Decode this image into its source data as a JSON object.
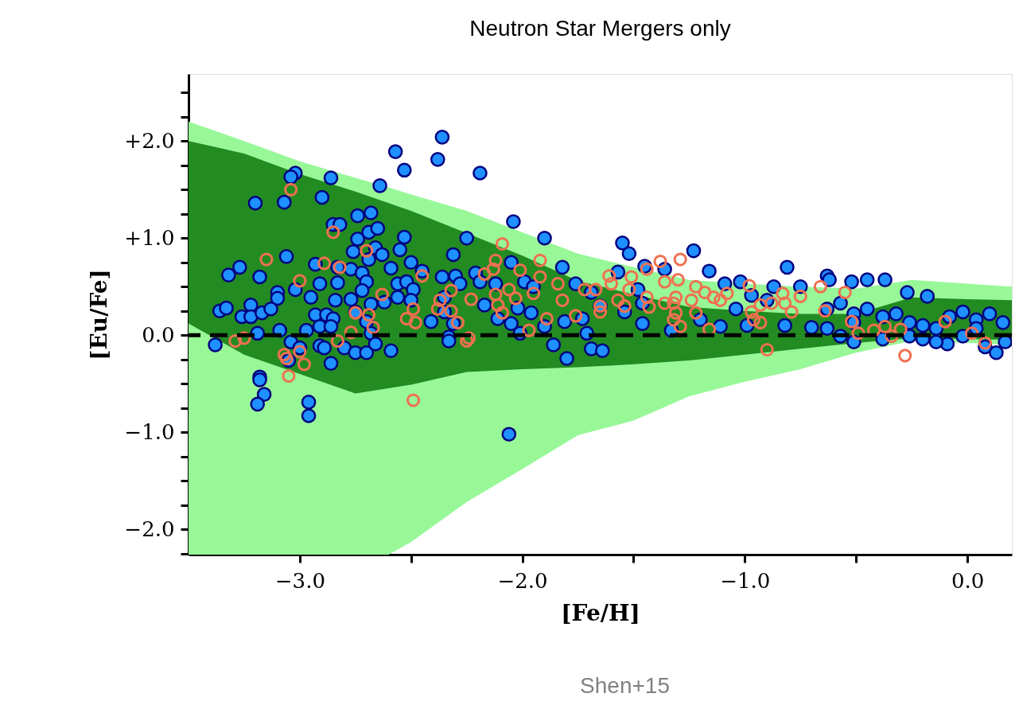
{
  "chart_data": {
    "type": "scatter",
    "title": "Neutron Star Mergers only",
    "xlabel": "[Fe/H]",
    "ylabel": "[Eu/Fe]",
    "annotations": [
      "Shen+15"
    ],
    "xlim": [
      -3.5,
      0.2
    ],
    "ylim": [
      -2.26,
      2.69
    ],
    "xticks": [
      {
        "value": -3,
        "label": "−3.0"
      },
      {
        "value": -2.5,
        "label": null
      },
      {
        "value": -2,
        "label": "−2.0"
      },
      {
        "value": -1.5,
        "label": null
      },
      {
        "value": -1,
        "label": "−1.0"
      },
      {
        "value": -0.5,
        "label": null
      },
      {
        "value": 0,
        "label": "0.0"
      }
    ],
    "yticks": [
      {
        "value": -2.25,
        "label": null
      },
      {
        "value": -2,
        "label": "−2.0"
      },
      {
        "value": -1.75,
        "label": null
      },
      {
        "value": -1.5,
        "label": null
      },
      {
        "value": -1.25,
        "label": null
      },
      {
        "value": -1,
        "label": "−1.0"
      },
      {
        "value": -0.75,
        "label": null
      },
      {
        "value": -0.5,
        "label": null
      },
      {
        "value": -0.25,
        "label": null
      },
      {
        "value": 0,
        "label": "0.0"
      },
      {
        "value": 0.25,
        "label": null
      },
      {
        "value": 0.5,
        "label": null
      },
      {
        "value": 0.75,
        "label": null
      },
      {
        "value": 1,
        "label": "+1.0"
      },
      {
        "value": 1.25,
        "label": null
      },
      {
        "value": 1.5,
        "label": null
      },
      {
        "value": 1.75,
        "label": null
      },
      {
        "value": 2,
        "label": "+2.0"
      },
      {
        "value": 2.25,
        "label": null
      },
      {
        "value": 2.5,
        "label": null
      }
    ],
    "grid": false,
    "ref_lines": [
      {
        "axis": "y",
        "value": 0,
        "color": "#000000",
        "line_style": "dashed"
      }
    ],
    "series": [
      {
        "type": "line",
        "color": "#98f898",
        "x": [
          -3.5,
          -3.25,
          -3.0,
          -2.75,
          -2.6,
          -2.5,
          -2.25,
          -2.0,
          -1.75,
          -1.5,
          -1.25,
          -1.0,
          -0.75,
          -0.5,
          -0.25,
          0.0,
          0.2
        ],
        "values": [
          null,
          null,
          null,
          null,
          null,
          null,
          null,
          null,
          null,
          null,
          null,
          null,
          null,
          null,
          null,
          null,
          null
        ],
        "upper": [
          2.2,
          2.0,
          1.79,
          1.62,
          1.52,
          1.45,
          1.28,
          1.06,
          0.84,
          0.7,
          0.57,
          0.53,
          0.5,
          0.48,
          0.57,
          0.53,
          0.5
        ],
        "lower": [
          -2.26,
          -2.26,
          -2.26,
          -2.26,
          -2.26,
          -2.13,
          -1.72,
          -1.38,
          -1.03,
          -0.88,
          -0.63,
          -0.48,
          -0.35,
          -0.18,
          -0.06,
          -0.08,
          -0.1
        ]
      },
      {
        "type": "line",
        "color": "#228b22",
        "x": [
          -3.5,
          -3.25,
          -3.0,
          -2.75,
          -2.5,
          -2.25,
          -2.0,
          -1.75,
          -1.5,
          -1.25,
          -1.0,
          -0.75,
          -0.5,
          -0.25,
          0.0,
          0.2
        ],
        "values": [
          null,
          null,
          null,
          null,
          null,
          null,
          null,
          null,
          null,
          null,
          null,
          null,
          null,
          null,
          null,
          null
        ],
        "upper": [
          2.0,
          1.87,
          1.66,
          1.48,
          1.28,
          1.05,
          0.82,
          0.56,
          0.42,
          0.29,
          0.25,
          0.22,
          0.22,
          0.39,
          0.37,
          0.36
        ],
        "lower": [
          0.12,
          -0.2,
          -0.4,
          -0.6,
          -0.51,
          -0.38,
          -0.35,
          -0.33,
          -0.3,
          -0.26,
          -0.2,
          -0.14,
          -0.08,
          -0.03,
          -0.04,
          -0.05
        ]
      },
      {
        "marker": "circle",
        "color": "#1e90ff",
        "x": [
          -2.36,
          -2.57,
          -2.38,
          -2.53,
          -2.19,
          -3.02,
          -3.04,
          -2.86,
          -2.64,
          -3.2,
          -3.07,
          -2.9,
          -2.74,
          -2.68,
          -2.85,
          -2.82,
          -2.04,
          -2.69,
          -2.65,
          -2.25,
          -1.9,
          -2.74,
          -2.53,
          -2.31,
          -2.76,
          -2.55,
          -2.66,
          -2.63,
          -3.06,
          -2.69,
          -2.5,
          -1.82,
          -3.27,
          -3.32,
          -3.18,
          -2.93,
          -2.83,
          -2.77,
          -2.72,
          -2.7,
          -2.59,
          -2.91,
          -2.83,
          -3.02,
          -3.1,
          -3.1,
          -2.95,
          -2.72,
          -2.84,
          -2.77,
          -2.56,
          -2.52,
          -2.49,
          -2.45,
          -2.56,
          -2.5,
          -2.36,
          -2.3,
          -2.28,
          -2.21,
          -2.19,
          -2.05,
          -2.12,
          -1.99,
          -1.95,
          -1.76,
          -3.36,
          -3.33,
          -3.22,
          -3.26,
          -3.22,
          -3.17,
          -3.13,
          -2.93,
          -2.88,
          -2.85,
          -2.68,
          -2.62,
          -2.75,
          -2.35,
          -2.35,
          -2.17,
          -2.02,
          -1.96,
          -2.41,
          -2.31,
          -2.11,
          -2.05,
          -1.81,
          -1.73,
          -3.19,
          -3.09,
          -2.97,
          -2.91,
          -2.86,
          -2.7,
          -2.68,
          -2.33,
          -2.01,
          -1.9,
          -3.38,
          -3.04,
          -3.0,
          -2.91,
          -2.89,
          -3.05,
          -3.18,
          -3.18,
          -3.16,
          -3.19,
          -2.96,
          -2.96,
          -2.86,
          -2.8,
          -2.75,
          -2.7,
          -2.66,
          -2.59,
          -2.33,
          -2.06,
          -1.86,
          -1.8,
          -1.69,
          -1.55,
          -1.52,
          -1.23,
          -1.16,
          -1.45,
          -1.36,
          -1.57,
          -0.81,
          -1.02,
          -1.09,
          -0.63,
          -0.62,
          -0.52,
          -0.45,
          -0.37,
          -0.27,
          -0.18,
          -0.87,
          -0.75,
          -0.97,
          -0.9,
          -1.69,
          -1.65,
          -1.48,
          -1.46,
          -1.54,
          -1.46,
          -1.33,
          -1.71,
          -1.64,
          -1.2,
          -1.11,
          -1.04,
          -0.99,
          -0.82,
          -0.7,
          -0.63,
          -0.57,
          -0.51,
          -0.45,
          -0.38,
          -0.32,
          -0.26,
          -0.2,
          -0.14,
          -0.08,
          -0.02,
          0.04,
          0.1,
          0.16,
          -0.57,
          -0.51,
          -0.38,
          -0.26,
          -0.2,
          -0.09,
          -0.02,
          0.08,
          0.13,
          0.17,
          -0.63,
          -0.51,
          -0.14,
          0.04
        ],
        "values": [
          2.04,
          1.89,
          1.81,
          1.7,
          1.67,
          1.67,
          1.63,
          1.62,
          1.54,
          1.36,
          1.37,
          1.42,
          1.23,
          1.26,
          1.14,
          1.14,
          1.17,
          1.06,
          1.1,
          1.0,
          1.0,
          0.99,
          1.01,
          0.83,
          0.86,
          0.88,
          0.9,
          0.83,
          0.81,
          0.78,
          0.75,
          0.7,
          0.7,
          0.62,
          0.6,
          0.73,
          0.7,
          0.68,
          0.64,
          0.55,
          0.69,
          0.53,
          0.54,
          0.47,
          0.44,
          0.38,
          0.39,
          0.46,
          0.36,
          0.37,
          0.53,
          0.55,
          0.47,
          0.66,
          0.39,
          0.36,
          0.6,
          0.61,
          0.53,
          0.64,
          0.55,
          0.75,
          0.53,
          0.55,
          0.5,
          0.53,
          0.25,
          0.28,
          0.31,
          0.19,
          0.19,
          0.23,
          0.27,
          0.21,
          0.21,
          0.17,
          0.32,
          0.34,
          0.24,
          0.39,
          0.24,
          0.31,
          0.28,
          0.23,
          0.14,
          0.12,
          0.17,
          0.12,
          0.14,
          0.17,
          0.02,
          0.05,
          0.05,
          0.09,
          0.09,
          0.14,
          0.02,
          -0.02,
          0.02,
          0.09,
          -0.1,
          -0.07,
          -0.13,
          -0.11,
          -0.13,
          -0.26,
          -0.43,
          -0.46,
          -0.61,
          -0.71,
          -0.69,
          -0.83,
          -0.29,
          -0.13,
          -0.18,
          -0.18,
          -0.09,
          -0.16,
          -0.06,
          -1.02,
          -0.1,
          -0.24,
          -0.14,
          0.95,
          0.84,
          0.87,
          0.66,
          0.71,
          0.68,
          0.65,
          0.7,
          0.55,
          0.53,
          0.61,
          0.57,
          0.55,
          0.57,
          0.57,
          0.44,
          0.4,
          0.5,
          0.5,
          0.41,
          0.36,
          0.44,
          0.3,
          0.47,
          0.33,
          0.24,
          0.12,
          0.05,
          0.02,
          -0.16,
          0.16,
          0.09,
          0.27,
          0.1,
          0.1,
          0.08,
          0.27,
          0.33,
          0.22,
          0.27,
          0.19,
          0.22,
          0.13,
          0.1,
          0.07,
          0.19,
          0.24,
          0.16,
          0.22,
          0.13,
          -0.01,
          -0.07,
          -0.04,
          -0.01,
          -0.04,
          -0.09,
          -0.01,
          -0.12,
          -0.18,
          -0.07,
          0.07,
          0.13,
          -0.07,
          0.07
        ]
      },
      {
        "marker": "circle",
        "color": "#f07050",
        "x": [
          -3.04,
          -2.85,
          -2.7,
          -3.15,
          -2.89,
          -2.82,
          -3.0,
          -2.63,
          -2.45,
          -2.09,
          -1.92,
          -2.12,
          -2.13,
          -2.17,
          -2.01,
          -1.92,
          -2.32,
          -2.23,
          -2.06,
          -2.12,
          -2.03,
          -1.95,
          -2.11,
          -2.09,
          -1.89,
          -1.76,
          -1.84,
          -1.82,
          -1.72,
          -2.37,
          -2.38,
          -2.32,
          -2.49,
          -2.52,
          -2.48,
          -2.75,
          -2.69,
          -2.67,
          -2.29,
          -2.77,
          -1.97,
          -2.24,
          -3.29,
          -3.25,
          -2.83,
          -3.07,
          -3.06,
          -3.0,
          -2.98,
          -3.05,
          -2.49,
          -2.25,
          -1.38,
          -1.29,
          -1.61,
          -1.51,
          -1.36,
          -1.3,
          -1.6,
          -1.67,
          -1.52,
          -1.44,
          -1.57,
          -1.54,
          -1.44,
          -1.43,
          -1.65,
          -1.65,
          -1.31,
          -1.32,
          -1.36,
          -1.24,
          -1.22,
          -1.18,
          -1.14,
          -1.11,
          -1.08,
          -1.31,
          -1.32,
          -1.29,
          -1.22,
          -1.16,
          -0.98,
          -0.93,
          -0.88,
          -0.82,
          -0.83,
          -0.75,
          -0.97,
          -0.96,
          -0.93,
          -0.79,
          -0.64,
          -0.66,
          -0.55,
          -0.9,
          -0.52,
          -0.49,
          -0.42,
          -0.37,
          -0.3,
          -0.34,
          -0.28,
          -0.1,
          0.02,
          0.08
        ],
        "values": [
          1.5,
          1.06,
          0.87,
          0.78,
          0.74,
          0.7,
          0.56,
          0.42,
          0.61,
          0.94,
          0.77,
          0.77,
          0.68,
          0.63,
          0.67,
          0.6,
          0.46,
          0.37,
          0.47,
          0.42,
          0.38,
          0.43,
          0.31,
          0.23,
          0.17,
          0.2,
          0.53,
          0.36,
          0.47,
          0.36,
          0.27,
          0.25,
          0.27,
          0.17,
          0.13,
          0.23,
          0.21,
          0.08,
          0.13,
          0.03,
          0.05,
          -0.03,
          -0.06,
          -0.03,
          -0.06,
          -0.2,
          -0.24,
          -0.17,
          -0.3,
          -0.42,
          -0.67,
          -0.06,
          0.76,
          0.78,
          0.61,
          0.6,
          0.55,
          0.57,
          0.53,
          0.47,
          0.47,
          0.68,
          0.36,
          0.3,
          0.39,
          0.29,
          0.3,
          0.24,
          0.39,
          0.33,
          0.33,
          0.36,
          0.5,
          0.44,
          0.39,
          0.36,
          0.43,
          0.23,
          0.16,
          0.09,
          0.23,
          0.06,
          0.51,
          0.31,
          0.33,
          0.33,
          0.43,
          0.4,
          0.24,
          0.16,
          0.13,
          0.24,
          0.25,
          0.5,
          0.44,
          -0.15,
          0.14,
          0.02,
          0.05,
          0.09,
          0.06,
          -0.01,
          -0.21,
          0.14,
          0.02,
          -0.08
        ]
      }
    ]
  }
}
